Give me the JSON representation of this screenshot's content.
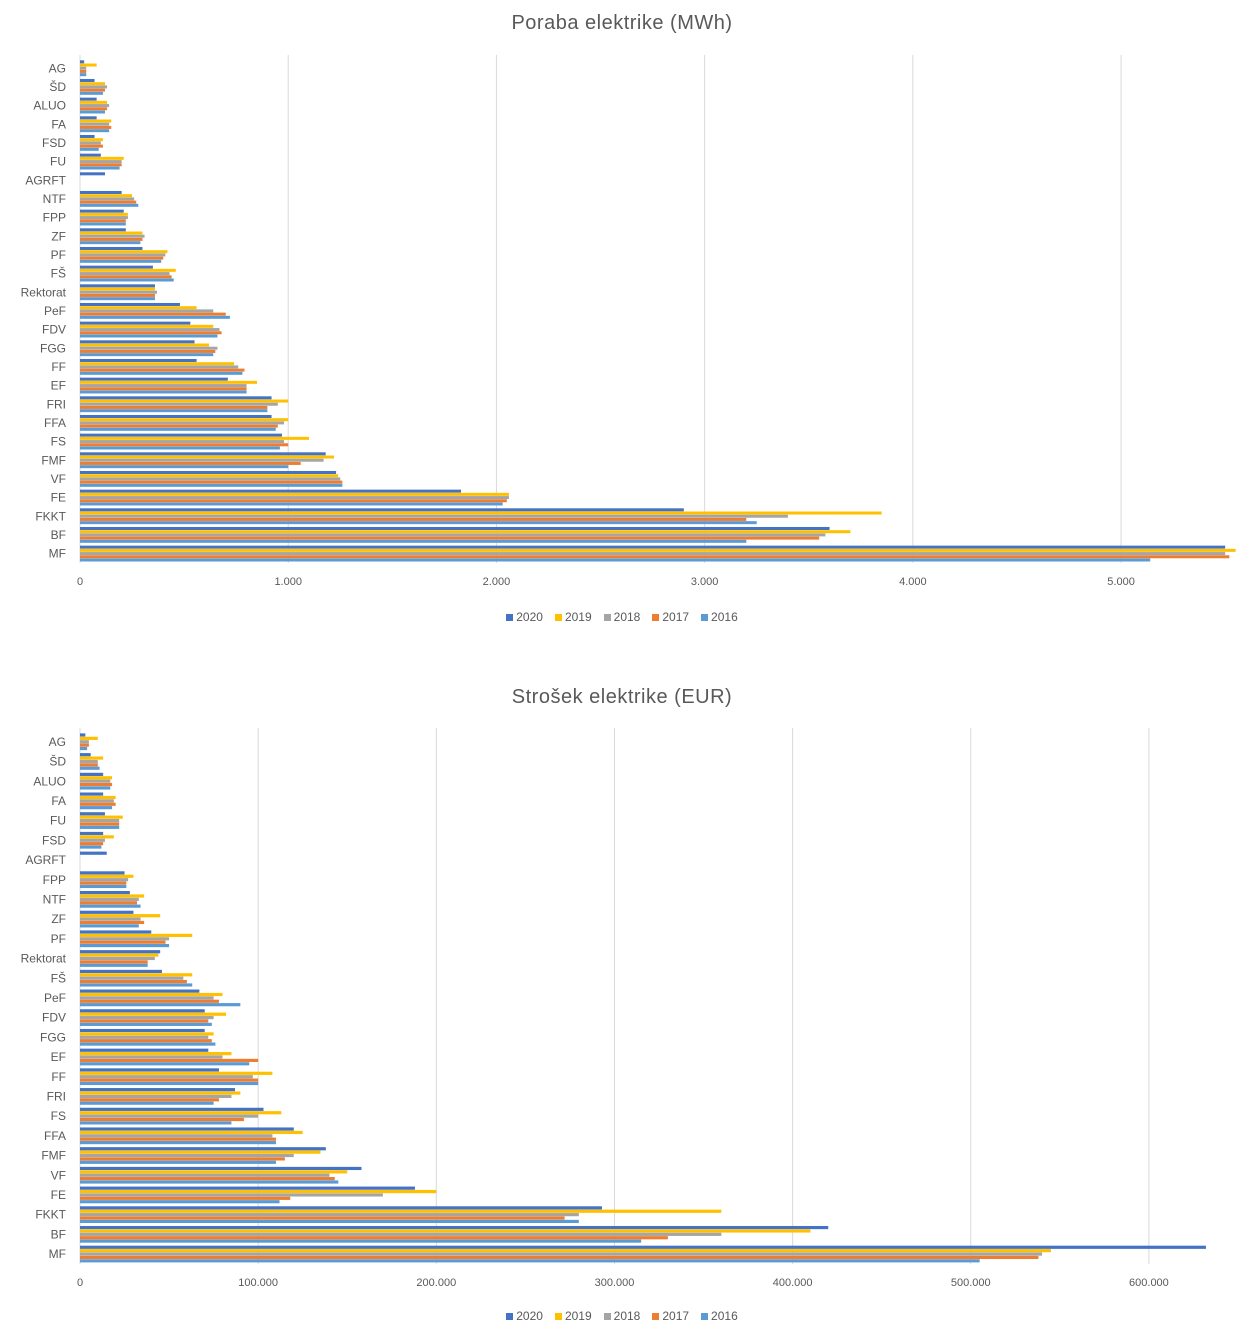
{
  "colors": {
    "2020": "#4472C4",
    "2019": "#FFC000",
    "2018": "#A5A5A5",
    "2017": "#ED7D31",
    "2016": "#5B9BD5"
  },
  "chart_data": [
    {
      "type": "bar",
      "orientation": "horizontal",
      "title": "Poraba elektrike (MWh)",
      "categories": [
        "AG",
        "ŠD",
        "ALUO",
        "FA",
        "FSD",
        "FU",
        "AGRFT",
        "NTF",
        "FPP",
        "ZF",
        "PF",
        "FŠ",
        "Rektorat",
        "PeF",
        "FDV",
        "FGG",
        "FF",
        "EF",
        "FRI",
        "FFA",
        "FS",
        "FMF",
        "VF",
        "FE",
        "FKKT",
        "BF",
        "MF"
      ],
      "xlim": [
        0,
        5600
      ],
      "xticks": [
        0,
        1000,
        2000,
        3000,
        4000,
        5000
      ],
      "xtick_labels": [
        "0",
        "1.000",
        "2.000",
        "3.000",
        "4.000",
        "5.000"
      ],
      "legend": [
        "2020",
        "2019",
        "2018",
        "2017",
        "2016"
      ],
      "legend_position": "bottom",
      "grid": true,
      "series": [
        {
          "name": "2020",
          "values": [
            20,
            70,
            80,
            80,
            70,
            100,
            120,
            200,
            210,
            220,
            300,
            350,
            360,
            480,
            530,
            550,
            560,
            710,
            920,
            920,
            970,
            1180,
            1230,
            1830,
            2900,
            3600,
            5500
          ]
        },
        {
          "name": "2019",
          "values": [
            80,
            120,
            130,
            150,
            110,
            210,
            0,
            250,
            230,
            300,
            420,
            460,
            360,
            560,
            640,
            620,
            740,
            850,
            1000,
            1000,
            1100,
            1220,
            1240,
            2060,
            3850,
            3700,
            5550
          ]
        },
        {
          "name": "2018",
          "values": [
            30,
            130,
            140,
            140,
            100,
            200,
            0,
            260,
            230,
            310,
            410,
            430,
            370,
            640,
            670,
            660,
            760,
            800,
            950,
            980,
            980,
            1170,
            1250,
            2060,
            3400,
            3580,
            5500
          ]
        },
        {
          "name": "2017",
          "values": [
            30,
            120,
            130,
            150,
            110,
            200,
            0,
            270,
            220,
            300,
            400,
            440,
            360,
            700,
            680,
            650,
            790,
            800,
            900,
            950,
            1000,
            1060,
            1260,
            2050,
            3200,
            3550,
            5520
          ]
        },
        {
          "name": "2016",
          "values": [
            30,
            110,
            120,
            140,
            90,
            190,
            0,
            280,
            220,
            290,
            390,
            450,
            360,
            720,
            660,
            640,
            780,
            800,
            900,
            940,
            960,
            1000,
            1260,
            2030,
            3250,
            3200,
            5140
          ]
        }
      ]
    },
    {
      "type": "bar",
      "orientation": "horizontal",
      "title": "Strošek elektrike (EUR)",
      "categories": [
        "AG",
        "ŠD",
        "ALUO",
        "FA",
        "FU",
        "FSD",
        "AGRFT",
        "FPP",
        "NTF",
        "ZF",
        "PF",
        "Rektorat",
        "FŠ",
        "PeF",
        "FDV",
        "FGG",
        "EF",
        "FF",
        "FRI",
        "FS",
        "FFA",
        "FMF",
        "VF",
        "FE",
        "FKKT",
        "BF",
        "MF"
      ],
      "xlim": [
        0,
        650000
      ],
      "xticks": [
        0,
        100000,
        200000,
        300000,
        400000,
        500000,
        600000
      ],
      "xtick_labels": [
        "0",
        "100.000",
        "200.000",
        "300.000",
        "400.000",
        "500.000",
        "600.000"
      ],
      "legend": [
        "2020",
        "2019",
        "2018",
        "2017",
        "2016"
      ],
      "legend_position": "bottom",
      "grid": true,
      "series": [
        {
          "name": "2020",
          "values": [
            3000,
            6000,
            13000,
            13000,
            14000,
            13000,
            15000,
            25000,
            28000,
            30000,
            40000,
            45000,
            46000,
            67000,
            70000,
            70000,
            72000,
            78000,
            87000,
            103000,
            120000,
            138000,
            158000,
            188000,
            293000,
            420000,
            632000
          ]
        },
        {
          "name": "2019",
          "values": [
            10000,
            13000,
            18000,
            20000,
            24000,
            19000,
            0,
            30000,
            36000,
            45000,
            63000,
            44000,
            63000,
            80000,
            82000,
            75000,
            85000,
            108000,
            90000,
            113000,
            125000,
            135000,
            150000,
            200000,
            360000,
            410000,
            545000
          ]
        },
        {
          "name": "2018",
          "values": [
            5000,
            10000,
            17000,
            19000,
            22000,
            14000,
            0,
            27000,
            33000,
            34000,
            50000,
            42000,
            58000,
            75000,
            75000,
            72000,
            80000,
            97000,
            85000,
            100000,
            108000,
            120000,
            140000,
            170000,
            280000,
            360000,
            540000
          ]
        },
        {
          "name": "2017",
          "values": [
            5000,
            10000,
            18000,
            20000,
            22000,
            13000,
            0,
            26000,
            32000,
            36000,
            48000,
            38000,
            60000,
            78000,
            72000,
            74000,
            100000,
            100000,
            78000,
            92000,
            110000,
            115000,
            143000,
            118000,
            272000,
            330000,
            538000
          ]
        },
        {
          "name": "2016",
          "values": [
            4000,
            11000,
            17000,
            18000,
            22000,
            12000,
            0,
            26000,
            34000,
            33000,
            50000,
            38000,
            63000,
            90000,
            74000,
            76000,
            95000,
            100000,
            75000,
            85000,
            110000,
            110000,
            145000,
            112000,
            280000,
            315000,
            505000
          ]
        }
      ]
    }
  ]
}
